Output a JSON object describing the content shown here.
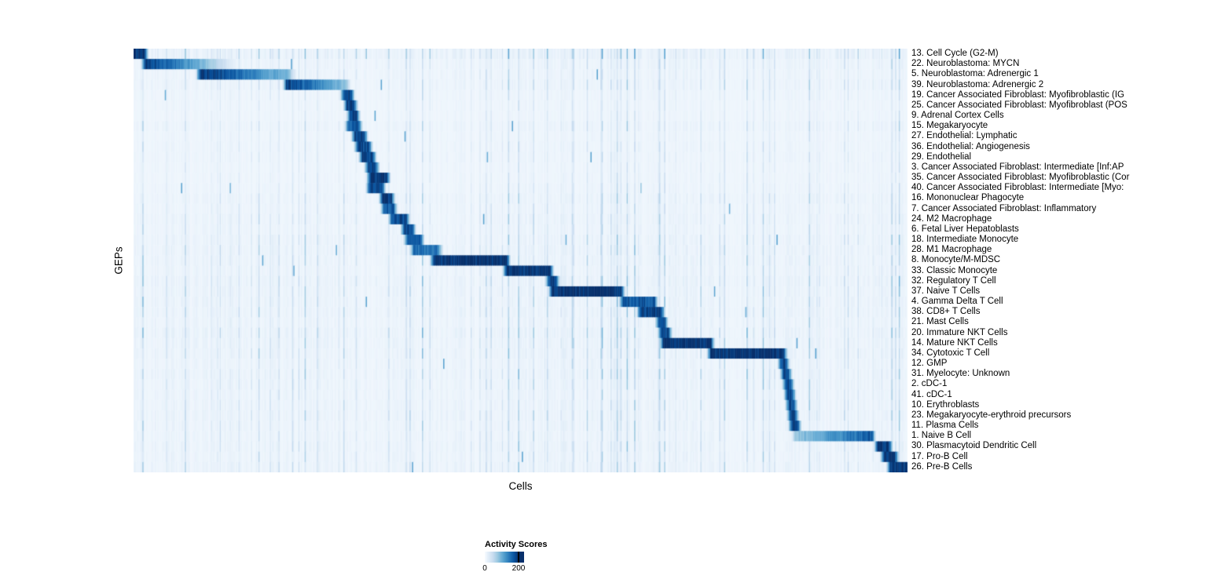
{
  "figure": {
    "y_axis_label": "GEPs",
    "x_axis_label": "Cells"
  },
  "legend": {
    "title": "Activity Scores",
    "tick_labels": [
      "0",
      "200"
    ],
    "tick_positions": [
      0,
      0.86
    ],
    "colormap": [
      "#f7fbff",
      "#deebf7",
      "#c6dbef",
      "#9ecae1",
      "#6baed6",
      "#4292c6",
      "#2171b5",
      "#08519c",
      "#08306b"
    ]
  },
  "chart_data": {
    "type": "heatmap",
    "title": "",
    "xlabel": "Cells",
    "ylabel": "GEPs",
    "colormap_name": "Blues",
    "value_range": [
      0,
      200
    ],
    "n_rows": 41,
    "legend_position": "bottom",
    "grid": false,
    "rows": [
      {
        "label": "13. Cell Cycle (G2-M)",
        "block_start": 0.0,
        "block_end": 0.014,
        "peak": 1.0,
        "gradient": 0,
        "fade_right": 0.006,
        "noise": 0.9
      },
      {
        "label": "22. Neuroblastoma: MYCN",
        "block_start": 0.015,
        "block_end": 0.09,
        "peak": 1.0,
        "gradient": -1,
        "fade_right": 0.05,
        "noise": 0.5
      },
      {
        "label": "5. Neuroblastoma: Adrenergic 1",
        "block_start": 0.086,
        "block_end": 0.2,
        "peak": 1.0,
        "gradient": -1,
        "fade_right": 0.012,
        "noise": 0.45
      },
      {
        "label": "39. Neuroblastoma: Adrenergic 2",
        "block_start": 0.198,
        "block_end": 0.274,
        "peak": 0.95,
        "gradient": -1,
        "fade_right": 0.008,
        "noise": 0.5
      },
      {
        "label": "19. Cancer Associated Fibroblast: Myofibroblastic (IG",
        "block_start": 0.272,
        "block_end": 0.281,
        "peak": 0.9,
        "gradient": 0,
        "fade_right": 0.006,
        "noise": 0.35
      },
      {
        "label": "25. Cancer Associated Fibroblast: Myofibroblast (POS",
        "block_start": 0.276,
        "block_end": 0.285,
        "peak": 0.95,
        "gradient": 0,
        "fade_right": 0.006,
        "noise": 0.3
      },
      {
        "label": "9. Adrenal Cortex Cells",
        "block_start": 0.28,
        "block_end": 0.288,
        "peak": 0.9,
        "gradient": 0,
        "fade_right": 0.006,
        "noise": 0.3
      },
      {
        "label": "15. Megakaryocyte",
        "block_start": 0.278,
        "block_end": 0.291,
        "peak": 0.85,
        "gradient": 0,
        "fade_right": 0.006,
        "noise": 0.45
      },
      {
        "label": "27. Endothelial: Lymphatic",
        "block_start": 0.286,
        "block_end": 0.298,
        "peak": 0.95,
        "gradient": 0,
        "fade_right": 0.006,
        "noise": 0.3
      },
      {
        "label": "36. Endothelial: Angiogenesis",
        "block_start": 0.29,
        "block_end": 0.304,
        "peak": 0.9,
        "gradient": 0,
        "fade_right": 0.006,
        "noise": 0.35
      },
      {
        "label": "29. Endothelial",
        "block_start": 0.296,
        "block_end": 0.309,
        "peak": 0.95,
        "gradient": 0,
        "fade_right": 0.006,
        "noise": 0.35
      },
      {
        "label": "3. Cancer Associated Fibroblast: Intermediate [Inf:AP",
        "block_start": 0.303,
        "block_end": 0.313,
        "peak": 0.9,
        "gradient": 0,
        "fade_right": 0.006,
        "noise": 0.3
      },
      {
        "label": "35. Cancer Associated Fibroblast: Myofibroblastic (Cor",
        "block_start": 0.306,
        "block_end": 0.327,
        "peak": 1.0,
        "gradient": 0,
        "fade_right": 0.006,
        "noise": 0.3
      },
      {
        "label": "40. Cancer Associated Fibroblast: Intermediate [Myo:",
        "block_start": 0.305,
        "block_end": 0.321,
        "peak": 0.9,
        "gradient": 0,
        "fade_right": 0.006,
        "noise": 0.35
      },
      {
        "label": "16. Mononuclear Phagocyte",
        "block_start": 0.322,
        "block_end": 0.333,
        "peak": 0.95,
        "gradient": 0,
        "fade_right": 0.006,
        "noise": 0.5
      },
      {
        "label": "7. Cancer Associated Fibroblast: Inflammatory",
        "block_start": 0.324,
        "block_end": 0.336,
        "peak": 0.85,
        "gradient": 0,
        "fade_right": 0.006,
        "noise": 0.4
      },
      {
        "label": "24. M2 Macrophage",
        "block_start": 0.334,
        "block_end": 0.352,
        "peak": 0.9,
        "gradient": 0,
        "fade_right": 0.006,
        "noise": 0.5
      },
      {
        "label": "6. Fetal Liver Hepatoblasts",
        "block_start": 0.35,
        "block_end": 0.36,
        "peak": 0.9,
        "gradient": 0,
        "fade_right": 0.006,
        "noise": 0.45
      },
      {
        "label": "18. Intermediate Monocyte",
        "block_start": 0.354,
        "block_end": 0.371,
        "peak": 0.85,
        "gradient": 0,
        "fade_right": 0.006,
        "noise": 0.55
      },
      {
        "label": "28. M1 Macrophage",
        "block_start": 0.362,
        "block_end": 0.393,
        "peak": 0.75,
        "gradient": 0,
        "fade_right": 0.008,
        "noise": 0.6
      },
      {
        "label": "8. Monocyte/M-MDSC",
        "block_start": 0.388,
        "block_end": 0.482,
        "peak": 1.0,
        "gradient": 0,
        "fade_right": 0.006,
        "noise": 0.55
      },
      {
        "label": "33. Classic Monocyte",
        "block_start": 0.482,
        "block_end": 0.538,
        "peak": 1.0,
        "gradient": 0,
        "fade_right": 0.006,
        "noise": 0.5
      },
      {
        "label": "32. Regulatory T Cell",
        "block_start": 0.537,
        "block_end": 0.546,
        "peak": 0.9,
        "gradient": 0,
        "fade_right": 0.006,
        "noise": 0.65
      },
      {
        "label": "37. Naive T Cells",
        "block_start": 0.541,
        "block_end": 0.63,
        "peak": 1.0,
        "gradient": 0,
        "fade_right": 0.006,
        "noise": 0.6
      },
      {
        "label": "4. Gamma Delta T Cell",
        "block_start": 0.632,
        "block_end": 0.673,
        "peak": 0.85,
        "gradient": 0,
        "fade_right": 0.006,
        "noise": 0.6
      },
      {
        "label": "38. CD8+ T Cells",
        "block_start": 0.655,
        "block_end": 0.682,
        "peak": 0.95,
        "gradient": 0,
        "fade_right": 0.006,
        "noise": 0.6
      },
      {
        "label": "21. Mast Cells",
        "block_start": 0.679,
        "block_end": 0.686,
        "peak": 0.9,
        "gradient": 0,
        "fade_right": 0.006,
        "noise": 0.5
      },
      {
        "label": "20. Immature NKT Cells",
        "block_start": 0.682,
        "block_end": 0.691,
        "peak": 0.9,
        "gradient": 0,
        "fade_right": 0.006,
        "noise": 0.65
      },
      {
        "label": "14. Mature NKT Cells",
        "block_start": 0.685,
        "block_end": 0.746,
        "peak": 1.0,
        "gradient": 0,
        "fade_right": 0.006,
        "noise": 0.6
      },
      {
        "label": "34. Cytotoxic T Cell",
        "block_start": 0.746,
        "block_end": 0.84,
        "peak": 1.0,
        "gradient": 0,
        "fade_right": 0.006,
        "noise": 0.6
      },
      {
        "label": "12. GMP",
        "block_start": 0.837,
        "block_end": 0.843,
        "peak": 0.9,
        "gradient": 0,
        "fade_right": 0.006,
        "noise": 0.5
      },
      {
        "label": "31. Myelocyte: Unknown",
        "block_start": 0.84,
        "block_end": 0.846,
        "peak": 0.9,
        "gradient": 0,
        "fade_right": 0.006,
        "noise": 0.6
      },
      {
        "label": "2. cDC-1",
        "block_start": 0.843,
        "block_end": 0.849,
        "peak": 0.9,
        "gradient": 0,
        "fade_right": 0.006,
        "noise": 0.55
      },
      {
        "label": "41. cDC-1",
        "block_start": 0.845,
        "block_end": 0.851,
        "peak": 0.9,
        "gradient": 0,
        "fade_right": 0.006,
        "noise": 0.5
      },
      {
        "label": "10. Erythroblasts",
        "block_start": 0.847,
        "block_end": 0.853,
        "peak": 0.9,
        "gradient": 0,
        "fade_right": 0.006,
        "noise": 0.55
      },
      {
        "label": "23. Megakaryocyte-erythroid precursors",
        "block_start": 0.849,
        "block_end": 0.855,
        "peak": 0.9,
        "gradient": 0,
        "fade_right": 0.006,
        "noise": 0.6
      },
      {
        "label": "11. Plasma Cells",
        "block_start": 0.851,
        "block_end": 0.858,
        "peak": 0.95,
        "gradient": 0,
        "fade_right": 0.006,
        "noise": 0.5
      },
      {
        "label": "1. Naive B Cell",
        "block_start": 0.855,
        "block_end": 0.954,
        "peak": 0.85,
        "gradient": 1,
        "fade_right": 0.006,
        "noise": 0.5
      },
      {
        "label": "30. Plasmacytoid Dendritic Cell",
        "block_start": 0.962,
        "block_end": 0.976,
        "peak": 1.0,
        "gradient": 0,
        "fade_right": 0.006,
        "noise": 0.55
      },
      {
        "label": "17. Pro-B Cell",
        "block_start": 0.97,
        "block_end": 0.984,
        "peak": 1.0,
        "gradient": 0,
        "fade_right": 0.006,
        "noise": 0.5
      },
      {
        "label": "26. Pre-B Cells",
        "block_start": 0.978,
        "block_end": 1.0,
        "peak": 1.0,
        "gradient": 0,
        "fade_right": 0.006,
        "noise": 0.55
      }
    ]
  }
}
